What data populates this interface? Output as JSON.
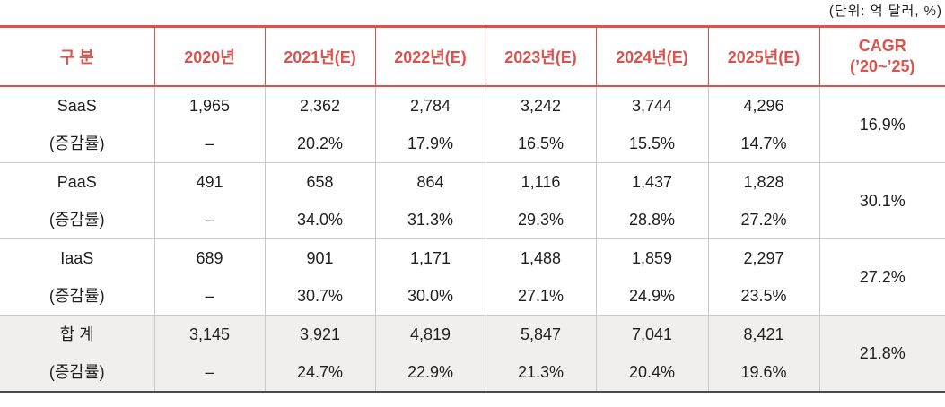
{
  "unit_label": "(단위: 억 달러, %)",
  "colors": {
    "accent_red": "#d9544e",
    "grid_gray": "#c9c9c9",
    "total_row_bg": "#f0efee",
    "bottom_border": "#4b4b4b",
    "body_text": "#1f1f1f"
  },
  "header": {
    "category": "구 분",
    "years": [
      "2020년",
      "2021년(E)",
      "2022년(E)",
      "2023년(E)",
      "2024년(E)",
      "2025년(E)"
    ],
    "cagr_line1": "CAGR",
    "cagr_line2": "(’20~’25)"
  },
  "rows": [
    {
      "name": "SaaS",
      "sub": "(증감률)",
      "values": [
        "1,965",
        "2,362",
        "2,784",
        "3,242",
        "3,744",
        "4,296"
      ],
      "changes": [
        "–",
        "20.2%",
        "17.9%",
        "16.5%",
        "15.5%",
        "14.7%"
      ],
      "cagr": "16.9%"
    },
    {
      "name": "PaaS",
      "sub": "(증감률)",
      "values": [
        "491",
        "658",
        "864",
        "1,116",
        "1,437",
        "1,828"
      ],
      "changes": [
        "–",
        "34.0%",
        "31.3%",
        "29.3%",
        "28.8%",
        "27.2%"
      ],
      "cagr": "30.1%"
    },
    {
      "name": "IaaS",
      "sub": "(증감률)",
      "values": [
        "689",
        "901",
        "1,171",
        "1,488",
        "1,859",
        "2,297"
      ],
      "changes": [
        "–",
        "30.7%",
        "30.0%",
        "27.1%",
        "24.9%",
        "23.5%"
      ],
      "cagr": "27.2%"
    },
    {
      "name": "합 계",
      "sub": "(증감률)",
      "values": [
        "3,145",
        "3,921",
        "4,819",
        "5,847",
        "7,041",
        "8,421"
      ],
      "changes": [
        "–",
        "24.7%",
        "22.9%",
        "21.3%",
        "20.4%",
        "19.6%"
      ],
      "cagr": "21.8%"
    }
  ]
}
